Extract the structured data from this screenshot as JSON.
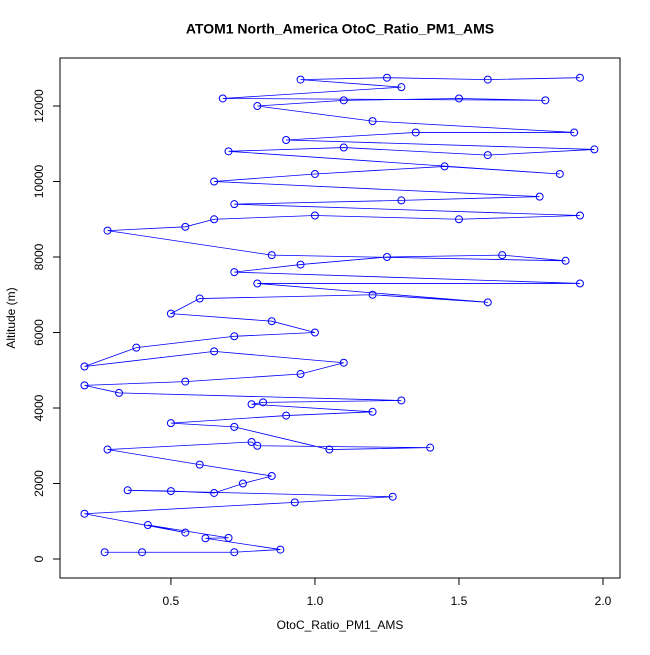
{
  "chart_data": {
    "type": "scatter",
    "title": "ATOM1 North_America OtoC_Ratio_PM1_AMS",
    "xlabel": "OtoC_Ratio_PM1_AMS",
    "ylabel": "Altitude (m)",
    "color": "#0000ff",
    "connected": true,
    "xlim": [
      0.115,
      2.059
    ],
    "ylim": [
      -503,
      13272
    ],
    "xticks": [
      0.5,
      {
        "value": 1.0,
        "label": "1.0"
      },
      1.5,
      {
        "value": 2.0,
        "label": "2.0"
      }
    ],
    "yticks": [
      0,
      2000,
      4000,
      6000,
      8000,
      10000,
      12000
    ],
    "x": [
      0.27,
      0.4,
      0.72,
      0.88,
      0.62,
      0.7,
      0.42,
      0.55,
      0.2,
      0.93,
      1.27,
      0.35,
      0.5,
      0.65,
      0.75,
      0.85,
      0.6,
      0.28,
      0.78,
      0.8,
      1.4,
      1.05,
      0.72,
      0.5,
      0.9,
      1.2,
      0.78,
      0.82,
      1.3,
      0.32,
      0.2,
      0.55,
      0.95,
      1.1,
      0.65,
      0.2,
      0.38,
      0.72,
      1.0,
      0.85,
      0.5,
      0.6,
      1.2,
      1.6,
      0.8,
      1.92,
      0.72,
      0.95,
      1.25,
      1.65,
      1.87,
      0.85,
      0.28,
      0.55,
      0.65,
      1.0,
      1.5,
      1.92,
      0.72,
      1.3,
      1.78,
      0.65,
      1.0,
      1.45,
      1.85,
      0.7,
      1.1,
      1.6,
      1.97,
      0.9,
      1.35,
      1.9,
      1.2,
      0.8,
      1.1,
      1.5,
      1.8,
      0.68,
      1.3,
      0.95,
      1.25,
      1.6,
      1.92
    ],
    "values": [
      180,
      180,
      180,
      250,
      550,
      560,
      900,
      700,
      1200,
      1500,
      1650,
      1820,
      1800,
      1750,
      2000,
      2200,
      2500,
      2900,
      3100,
      3000,
      2950,
      2900,
      3500,
      3600,
      3800,
      3900,
      4100,
      4150,
      4200,
      4400,
      4600,
      4700,
      4900,
      5200,
      5500,
      5100,
      5600,
      5900,
      6000,
      6300,
      6500,
      6900,
      7000,
      6800,
      7300,
      7300,
      7600,
      7800,
      8000,
      8050,
      7900,
      8050,
      8700,
      8800,
      9000,
      9100,
      9000,
      9100,
      9400,
      9500,
      9600,
      10000,
      10200,
      10400,
      10200,
      10800,
      10900,
      10700,
      10850,
      11100,
      11300,
      11300,
      11600,
      12000,
      12150,
      12200,
      12150,
      12200,
      12500,
      12700,
      12750,
      12700,
      12750
    ]
  }
}
